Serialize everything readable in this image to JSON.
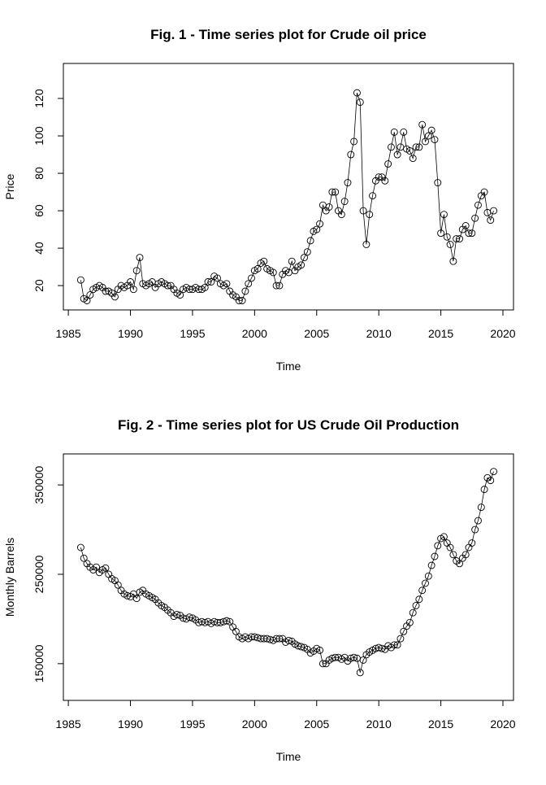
{
  "chart_data": [
    {
      "type": "line",
      "title": "Fig. 1 - Time series plot for Crude oil price",
      "xlabel": "Time",
      "ylabel": "Price",
      "color": "#000000",
      "marker": "open-circle",
      "xlim": [
        1984.6,
        2020.85
      ],
      "xticks": [
        1985,
        1990,
        1995,
        2000,
        2005,
        2010,
        2015,
        2020
      ],
      "ylim": [
        7,
        138.7
      ],
      "yticks": [
        20,
        40,
        60,
        80,
        100,
        120
      ],
      "x": [
        1986,
        1986.25,
        1986.5,
        1986.75,
        1987,
        1987.25,
        1987.5,
        1987.75,
        1988,
        1988.25,
        1988.5,
        1988.75,
        1989,
        1989.25,
        1989.5,
        1989.75,
        1990,
        1990.25,
        1990.5,
        1990.75,
        1991,
        1991.25,
        1991.5,
        1991.75,
        1992,
        1992.25,
        1992.5,
        1992.75,
        1993,
        1993.25,
        1993.5,
        1993.75,
        1994,
        1994.25,
        1994.5,
        1994.75,
        1995,
        1995.25,
        1995.5,
        1995.75,
        1996,
        1996.25,
        1996.5,
        1996.75,
        1997,
        1997.25,
        1997.5,
        1997.75,
        1998,
        1998.25,
        1998.5,
        1998.75,
        1999,
        1999.25,
        1999.5,
        1999.75,
        2000,
        2000.25,
        2000.5,
        2000.75,
        2001,
        2001.25,
        2001.5,
        2001.75,
        2002,
        2002.25,
        2002.5,
        2002.75,
        2003,
        2003.25,
        2003.5,
        2003.75,
        2004,
        2004.25,
        2004.5,
        2004.75,
        2005,
        2005.25,
        2005.5,
        2005.75,
        2006,
        2006.25,
        2006.5,
        2006.75,
        2007,
        2007.25,
        2007.5,
        2007.75,
        2008,
        2008.25,
        2008.5,
        2008.75,
        2009,
        2009.25,
        2009.5,
        2009.75,
        2010,
        2010.25,
        2010.5,
        2010.75,
        2011,
        2011.25,
        2011.5,
        2011.75,
        2012,
        2012.25,
        2012.5,
        2012.75,
        2013,
        2013.25,
        2013.5,
        2013.75,
        2014,
        2014.25,
        2014.5,
        2014.75,
        2015,
        2015.25,
        2015.5,
        2015.75,
        2016,
        2016.25,
        2016.5,
        2016.75,
        2017,
        2017.25,
        2017.5,
        2017.75,
        2018,
        2018.25,
        2018.5,
        2018.75,
        2019,
        2019.25
      ],
      "values": [
        23,
        13,
        12,
        15,
        18,
        19,
        20,
        19,
        17,
        17,
        16,
        14,
        18,
        20,
        19,
        20,
        22,
        18,
        28,
        35,
        21,
        20,
        21,
        22,
        19,
        21,
        22,
        21,
        20,
        20,
        18,
        16,
        15,
        18,
        19,
        18,
        18,
        19,
        18,
        18,
        19,
        22,
        22,
        25,
        24,
        21,
        20,
        21,
        17,
        15,
        14,
        12,
        12,
        17,
        21,
        24,
        28,
        29,
        32,
        33,
        29,
        28,
        27,
        20,
        20,
        26,
        28,
        27,
        33,
        28,
        30,
        31,
        35,
        38,
        44,
        49,
        50,
        53,
        63,
        60,
        62,
        70,
        70,
        60,
        58,
        65,
        75,
        90,
        97,
        123,
        118,
        60,
        42,
        58,
        68,
        76,
        78,
        78,
        76,
        85,
        94,
        102,
        90,
        94,
        102,
        93,
        92,
        88,
        94,
        94,
        106,
        97,
        100,
        103,
        98,
        75,
        48,
        58,
        46,
        42,
        33,
        45,
        45,
        50,
        52,
        48,
        48,
        56,
        63,
        68,
        70,
        59,
        55,
        60
      ]
    },
    {
      "type": "line",
      "title": "Fig. 2 - Time series plot for US Crude Oil Production",
      "xlabel": "Time",
      "ylabel": "Monthly Barrels",
      "color": "#000000",
      "marker": "open-circle",
      "xlim": [
        1984.6,
        2020.85
      ],
      "xticks": [
        1985,
        1990,
        1995,
        2000,
        2005,
        2010,
        2015,
        2020
      ],
      "ylim": [
        108900,
        384700
      ],
      "yticks": [
        150000,
        250000,
        350000
      ],
      "x": [
        1986,
        1986.25,
        1986.5,
        1986.75,
        1987,
        1987.25,
        1987.5,
        1987.75,
        1988,
        1988.25,
        1988.5,
        1988.75,
        1989,
        1989.25,
        1989.5,
        1989.75,
        1990,
        1990.25,
        1990.5,
        1990.75,
        1991,
        1991.25,
        1991.5,
        1991.75,
        1992,
        1992.25,
        1992.5,
        1992.75,
        1993,
        1993.25,
        1993.5,
        1993.75,
        1994,
        1994.25,
        1994.5,
        1994.75,
        1995,
        1995.25,
        1995.5,
        1995.75,
        1996,
        1996.25,
        1996.5,
        1996.75,
        1997,
        1997.25,
        1997.5,
        1997.75,
        1998,
        1998.25,
        1998.5,
        1998.75,
        1999,
        1999.25,
        1999.5,
        1999.75,
        2000,
        2000.25,
        2000.5,
        2000.75,
        2001,
        2001.25,
        2001.5,
        2001.75,
        2002,
        2002.25,
        2002.5,
        2002.75,
        2003,
        2003.25,
        2003.5,
        2003.75,
        2004,
        2004.25,
        2004.5,
        2004.75,
        2005,
        2005.25,
        2005.5,
        2005.75,
        2006,
        2006.25,
        2006.5,
        2006.75,
        2007,
        2007.25,
        2007.5,
        2007.75,
        2008,
        2008.25,
        2008.5,
        2008.75,
        2009,
        2009.25,
        2009.5,
        2009.75,
        2010,
        2010.25,
        2010.5,
        2010.75,
        2011,
        2011.25,
        2011.5,
        2011.75,
        2012,
        2012.25,
        2012.5,
        2012.75,
        2013,
        2013.25,
        2013.5,
        2013.75,
        2014,
        2014.25,
        2014.5,
        2014.75,
        2015,
        2015.25,
        2015.5,
        2015.75,
        2016,
        2016.25,
        2016.5,
        2016.75,
        2017,
        2017.25,
        2017.5,
        2017.75,
        2018,
        2018.25,
        2018.5,
        2018.75,
        2019,
        2019.25
      ],
      "values": [
        280000,
        268000,
        262000,
        258000,
        255000,
        258000,
        252000,
        255000,
        257000,
        250000,
        245000,
        243000,
        238000,
        232000,
        228000,
        226000,
        225000,
        228000,
        223000,
        230000,
        232000,
        228000,
        226000,
        224000,
        222000,
        218000,
        215000,
        213000,
        210000,
        207000,
        203000,
        205000,
        204000,
        201000,
        200000,
        202000,
        201000,
        199000,
        196000,
        197000,
        196000,
        197000,
        195000,
        197000,
        196000,
        196000,
        197000,
        198000,
        197000,
        191000,
        186000,
        180000,
        178000,
        180000,
        178000,
        180000,
        180000,
        179000,
        178000,
        178000,
        178000,
        177000,
        176000,
        178000,
        178000,
        178000,
        174000,
        176000,
        175000,
        172000,
        170000,
        169000,
        168000,
        166000,
        162000,
        164000,
        167000,
        165000,
        150000,
        150000,
        154000,
        156000,
        157000,
        157000,
        155000,
        157000,
        153000,
        156000,
        157000,
        156000,
        140000,
        154000,
        160000,
        163000,
        165000,
        167000,
        168000,
        167000,
        166000,
        170000,
        168000,
        171000,
        171000,
        178000,
        186000,
        192000,
        196000,
        207000,
        215000,
        222000,
        232000,
        240000,
        248000,
        260000,
        270000,
        282000,
        290000,
        292000,
        285000,
        280000,
        272000,
        265000,
        262000,
        268000,
        272000,
        280000,
        285000,
        300000,
        310000,
        325000,
        345000,
        358000,
        355000,
        365000
      ]
    }
  ]
}
